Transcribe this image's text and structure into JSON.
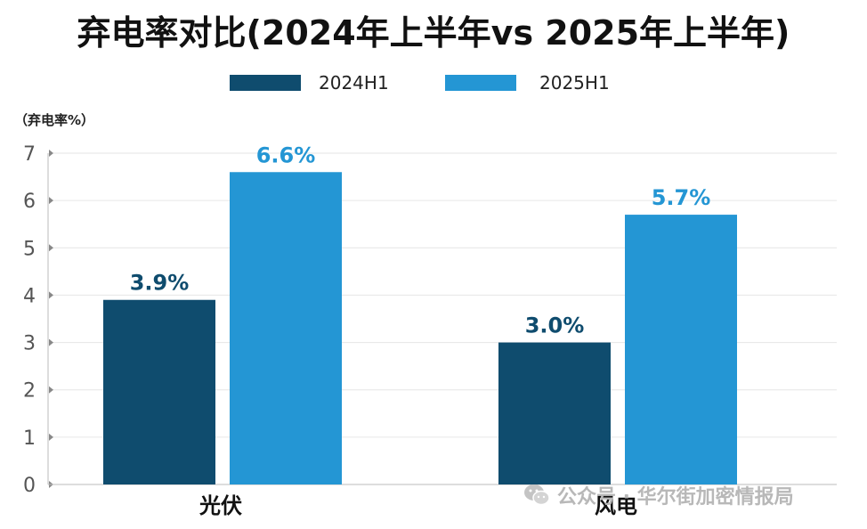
{
  "chart_data": {
    "type": "bar",
    "title": "弃电率对比(2024年上半年vs 2025年上半年)",
    "ylabel": "（弃电率%）",
    "xlabel": "",
    "categories": [
      "光伏",
      "风电"
    ],
    "series": [
      {
        "name": "2024H1",
        "color": "#0f4c6e",
        "values": [
          3.9,
          3.0
        ],
        "labels": [
          "3.9%",
          "3.0%"
        ]
      },
      {
        "name": "2025H1",
        "color": "#2496d4",
        "values": [
          6.6,
          5.7
        ],
        "labels": [
          "6.6%",
          "5.7%"
        ]
      }
    ],
    "ylim": [
      0,
      7
    ],
    "yticks": [
      "0",
      "1",
      "2",
      "3",
      "4",
      "5",
      "6",
      "7"
    ],
    "grid": true,
    "legend_position": "top-center"
  },
  "watermark": {
    "text": "公众号 · 华尔街加密情报局",
    "icon": "wechat-icon"
  }
}
